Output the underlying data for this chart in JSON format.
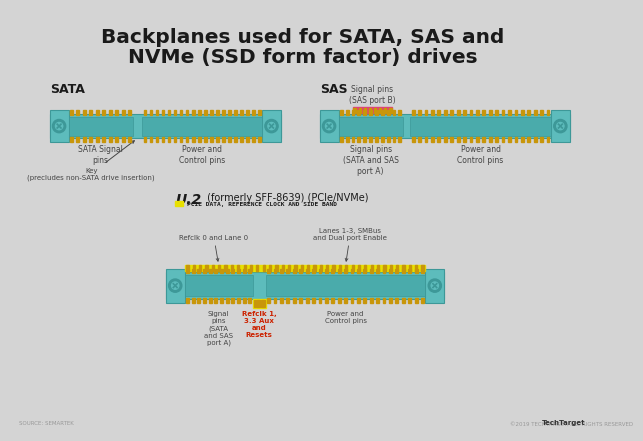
{
  "title_line1": "Backplanes used for SATA, SAS and",
  "title_line2": "NVMe (SSD form factor) drives",
  "bg_color": "#d4d4d4",
  "panel_bg": "#ffffff",
  "connector_teal": "#5dbcbc",
  "connector_dark": "#3d9898",
  "connector_mid": "#4aabab",
  "pin_gold": "#c8960a",
  "highlight_pink": "#e0407a",
  "highlight_yellow": "#e8e000",
  "text_dark": "#1a1a1a",
  "text_label": "#444444",
  "text_red": "#cc2200",
  "source_text": "SOURCE: SEMARTEK",
  "copyright_text": "©2019 TECHTARGET, ALL RIGHTS RESERVED",
  "techTarget_text": "TechTarget",
  "sata_label": "SATA",
  "sas_label": "SAS",
  "u2_label": "U.2",
  "u2_sub": " (formerly SFF-8639) (PCIe/NVMe)",
  "pcie_legend": "PCIE DATA, REFERENCE CLOCK AND SIDE BAND",
  "sata_signal_pins": "SATA Signal\npins",
  "sata_power_pins": "Power and\nControl pins",
  "sata_key": "Key\n(precludes non-SATA drive insertion)",
  "sas_signal_a": "Signal pins\n(SATA and SAS\nport A)",
  "sas_signal_b": "Signal pins\n(SAS port B)",
  "sas_power": "Power and\nControl pins",
  "u2_signal": "Signal\npins\n(SATA\nand SAS\nport A)",
  "u2_refclk0": "Refclk 0 and Lane 0",
  "u2_lanes": "Lanes 1-3, SMBus\nand Dual port Enable",
  "u2_refclk1": "Refclk 1,\n3.3 Aux\nand\nResets",
  "u2_power": "Power and\nControl pins"
}
